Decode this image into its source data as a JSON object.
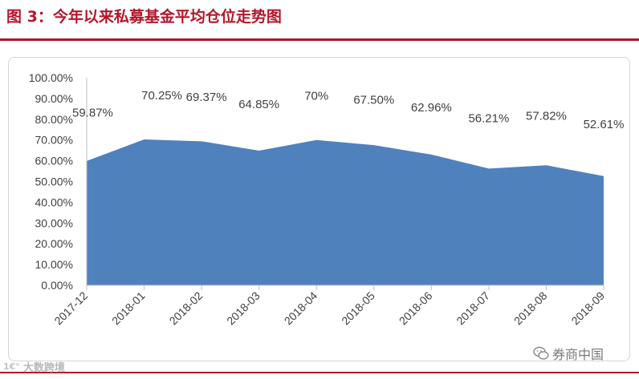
{
  "header": {
    "title": "图 3：今年以来私募基金平均仓位走势图"
  },
  "chart_data": {
    "type": "area",
    "title": "",
    "xlabel": "",
    "ylabel": "",
    "categories": [
      "2017-12",
      "2018-01",
      "2018-02",
      "2018-03",
      "2018-04",
      "2018-05",
      "2018-06",
      "2018-07",
      "2018-08",
      "2018-09"
    ],
    "series": [
      {
        "values": [
          59.87,
          70.25,
          69.37,
          64.85,
          70,
          67.5,
          62.96,
          56.21,
          57.82,
          52.61
        ],
        "labels": [
          "59.87%",
          "70.25%",
          "69.37%",
          "64.85%",
          "70%",
          "67.50%",
          "62.96%",
          "56.21%",
          "57.82%",
          "52.61%"
        ]
      }
    ],
    "ylim": [
      0,
      100
    ],
    "y_ticks": [
      "0.00%",
      "10.00%",
      "20.00%",
      "30.00%",
      "40.00%",
      "50.00%",
      "60.00%",
      "70.00%",
      "80.00%",
      "90.00%",
      "100.00%"
    ],
    "grid": false,
    "legend": "none",
    "colors": {
      "area_fill": "#4f81bd",
      "text": "#404040",
      "title": "#b4162b"
    }
  },
  "footer": {
    "source_logo_text": "大数跨境",
    "source_logo_mark": "1€°",
    "watermark_text": "券商中国",
    "watermark_icon": "wechat-icon"
  }
}
